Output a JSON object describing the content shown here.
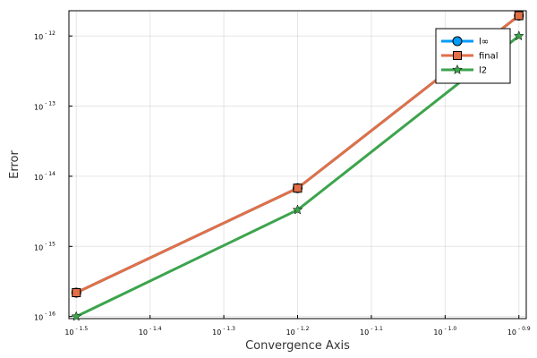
{
  "chart_data": {
    "type": "line",
    "xlabel": "Convergence Axis",
    "ylabel": "Error",
    "x_scale": "log10",
    "y_scale": "log10",
    "xlim_exponent": [
      -1.51,
      -0.89
    ],
    "ylim_exponent": [
      -16.03,
      -11.64
    ],
    "x_ticks": [
      {
        "base": "10",
        "exp": "- 1.5",
        "value": -1.5
      },
      {
        "base": "10",
        "exp": "- 1.4",
        "value": -1.4
      },
      {
        "base": "10",
        "exp": "- 1.3",
        "value": -1.3
      },
      {
        "base": "10",
        "exp": "- 1.2",
        "value": -1.2
      },
      {
        "base": "10",
        "exp": "- 1.1",
        "value": -1.1
      },
      {
        "base": "10",
        "exp": "- 1.0",
        "value": -1.0
      },
      {
        "base": "10",
        "exp": "- 0.9",
        "value": -0.9
      }
    ],
    "y_ticks": [
      {
        "base": "10",
        "exp": "- 16",
        "value": -16
      },
      {
        "base": "10",
        "exp": "- 15",
        "value": -15
      },
      {
        "base": "10",
        "exp": "- 14",
        "value": -14
      },
      {
        "base": "10",
        "exp": "- 13",
        "value": -13
      },
      {
        "base": "10",
        "exp": "- 12",
        "value": -12
      }
    ],
    "grid": true,
    "legend_position": "top-right",
    "series": [
      {
        "name": "l∞",
        "color": "#009af9",
        "marker": "circle",
        "x_log10": [
          -1.5,
          -1.2,
          -0.9
        ],
        "y_log10": [
          -15.66,
          -14.17,
          -11.71
        ]
      },
      {
        "name": "final",
        "color": "#e26f46",
        "marker": "square",
        "x_log10": [
          -1.5,
          -1.2,
          -0.9
        ],
        "y_log10": [
          -15.66,
          -14.17,
          -11.71
        ]
      },
      {
        "name": "l2",
        "color": "#3da44d",
        "marker": "star",
        "x_log10": [
          -1.5,
          -1.2,
          -0.9
        ],
        "y_log10": [
          -16.0,
          -14.48,
          -12.0
        ]
      }
    ]
  }
}
